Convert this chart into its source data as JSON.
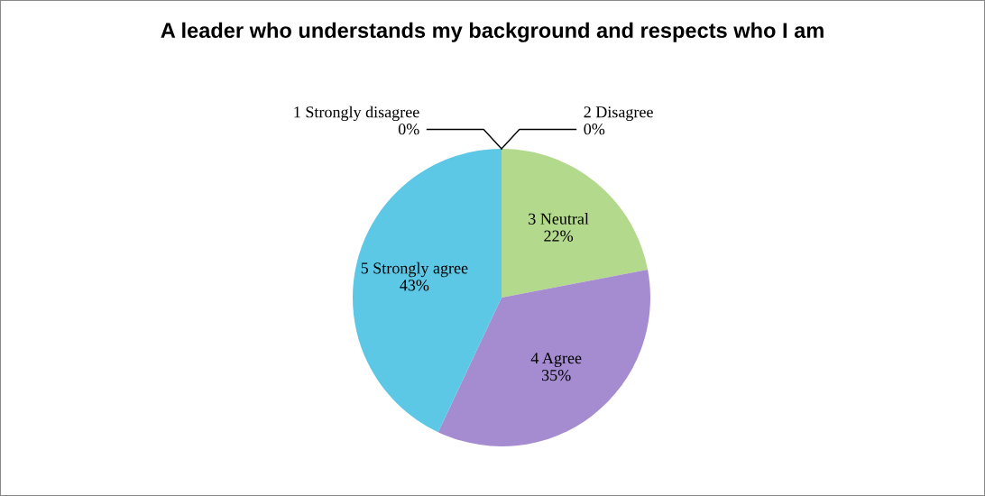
{
  "chart_data": {
    "type": "pie",
    "title": "A leader who understands my background and respects who I am",
    "categories": [
      "1 Strongly disagree",
      "2 Disagree",
      "3 Neutral",
      "4 Agree",
      "5 Strongly agree"
    ],
    "values": [
      0,
      0,
      22,
      35,
      43
    ],
    "colors": [
      "#4f81bd",
      "#c0504d",
      "#b3d98c",
      "#a58bd0",
      "#5cc8e6"
    ],
    "value_labels": [
      "0%",
      "0%",
      "22%",
      "35%",
      "43%"
    ],
    "legend": false
  }
}
